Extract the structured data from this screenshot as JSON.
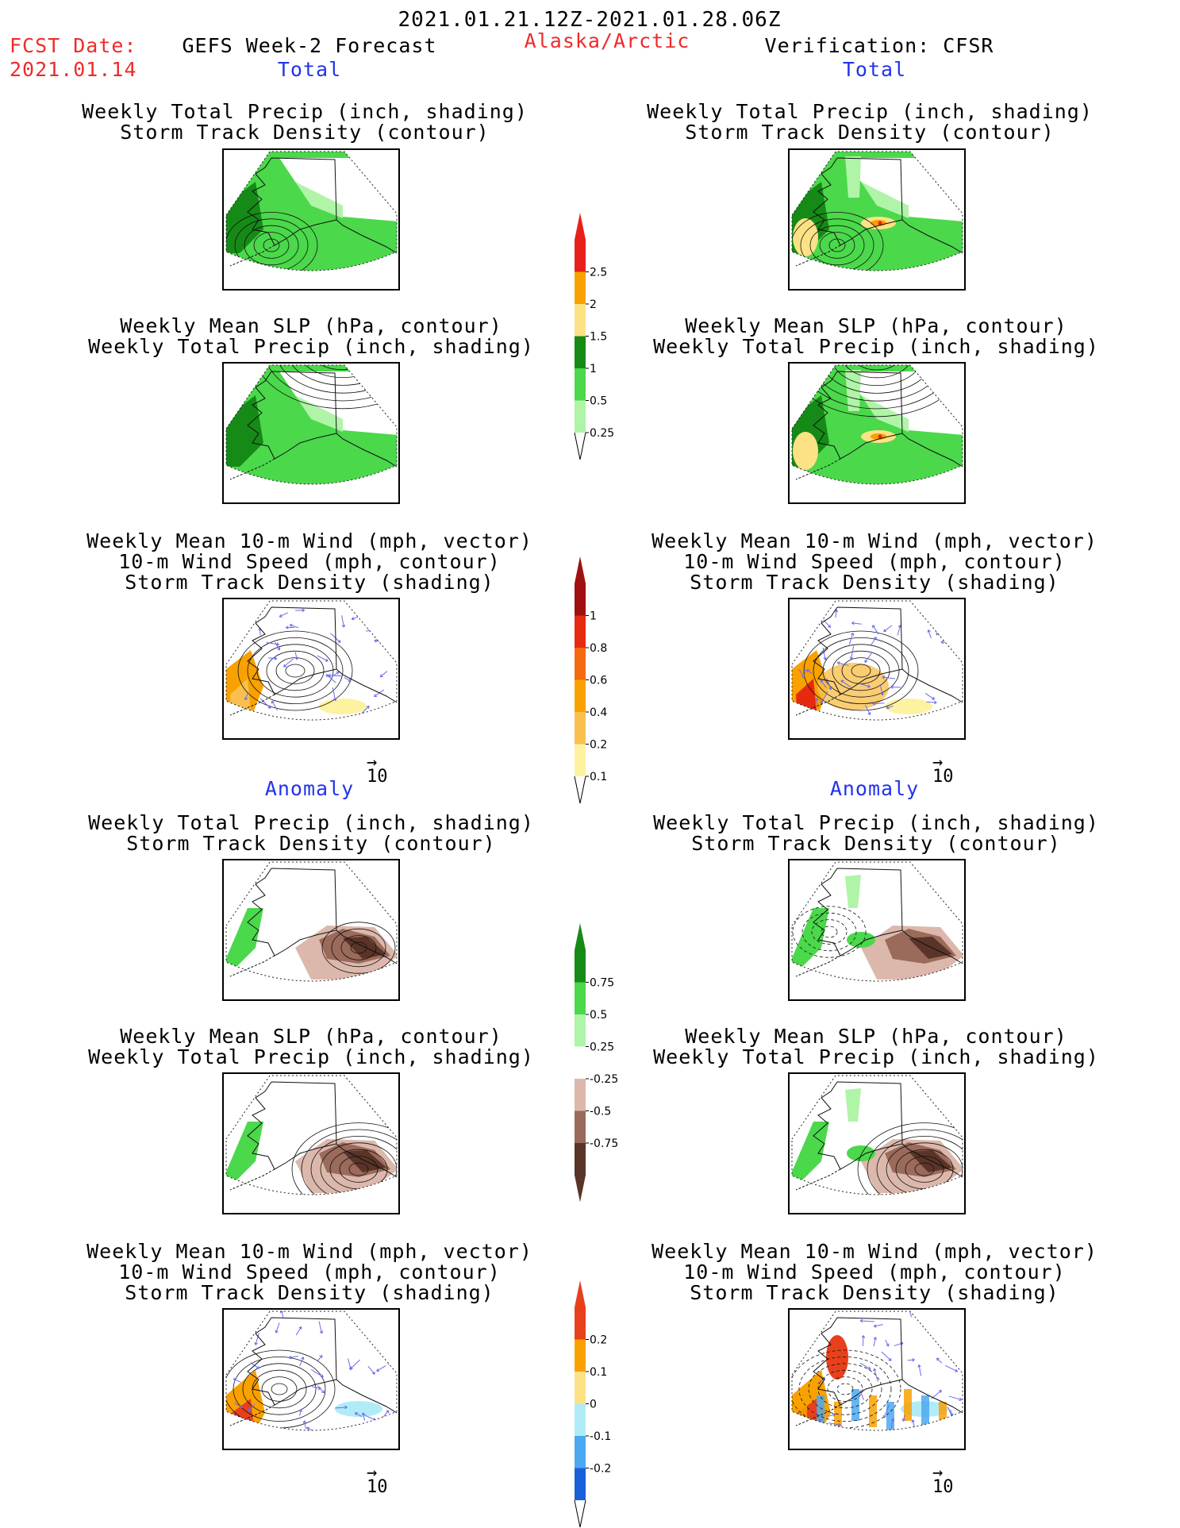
{
  "header": {
    "date_range": "2021.01.21.12Z-2021.01.28.06Z",
    "fcst_label": "FCST Date:",
    "fcst_date": "2021.01.14",
    "model": "GEFS Week-2 Forecast",
    "region": "Alaska/Arctic",
    "verification": "Verification: CFSR"
  },
  "sections": {
    "total_left": "Total",
    "total_right": "Total",
    "anomaly_left": "Anomaly",
    "anomaly_right": "Anomaly"
  },
  "panel_titles": {
    "precip_track": "Weekly Total Precip (inch, shading)\nStorm Track Density (contour)",
    "slp_precip": "Weekly Mean SLP (hPa, contour)\nWeekly Total Precip (inch, shading)",
    "wind_track": "Weekly Mean 10-m Wind (mph, vector)\n10-m Wind Speed (mph, contour)\nStorm Track Density (shading)"
  },
  "vector_scale": "10",
  "colorbars": [
    {
      "name": "precip-total",
      "labels": [
        "2.5",
        "2",
        "1.5",
        "1",
        "0.5",
        "0.25"
      ],
      "colors": [
        "#e8201c",
        "#f9a100",
        "#fde285",
        "#168a16",
        "#4bd84b",
        "#b0f4a8"
      ]
    },
    {
      "name": "track-total",
      "labels": [
        "1",
        "0.8",
        "0.6",
        "0.4",
        "0.2",
        "0.1"
      ],
      "colors": [
        "#a01010",
        "#e62a10",
        "#f56a10",
        "#f9a100",
        "#f9c050",
        "#fdf2a0"
      ]
    },
    {
      "name": "precip-anom",
      "labels": [
        "0.75",
        "0.5",
        "0.25",
        "-0.25",
        "-0.5",
        "-0.75"
      ],
      "colors": [
        "#168a16",
        "#4bd84b",
        "#b0f4a8",
        "#ffffff",
        "#dcb8ac",
        "#9a6a5a",
        "#5a3428"
      ]
    },
    {
      "name": "track-anom",
      "labels": [
        "0.2",
        "0.1",
        "0",
        "-0.1",
        "-0.2"
      ],
      "colors": [
        "#e8401c",
        "#f9a100",
        "#fde285",
        "#b0ecf8",
        "#4ca8f0",
        "#1a60d8"
      ]
    }
  ],
  "colors": {
    "red_text": "#ee2b2b",
    "blue_text": "#2233ee"
  }
}
